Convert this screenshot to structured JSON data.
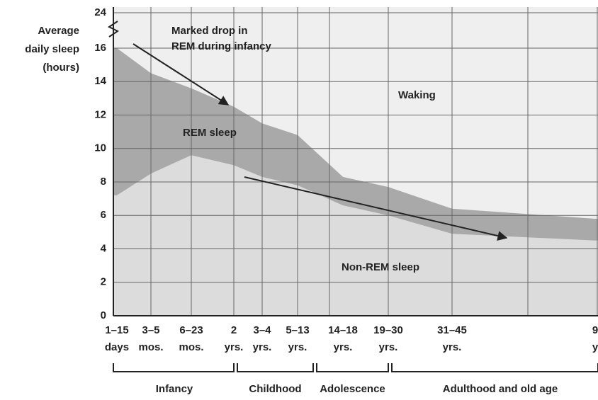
{
  "chart_data": {
    "type": "stacked_area",
    "y_label": [
      "Average",
      "daily sleep",
      "(hours)"
    ],
    "categories": [
      [
        "1–15",
        "days"
      ],
      [
        "3–5",
        "mos."
      ],
      [
        "6–23",
        "mos."
      ],
      [
        "2",
        "yrs."
      ],
      [
        "3–4",
        "yrs."
      ],
      [
        "5–13",
        "yrs."
      ],
      [
        "14–18",
        "yrs."
      ],
      [
        "19–30",
        "yrs."
      ],
      [
        "31–45",
        "yrs."
      ],
      [
        "9",
        "y"
      ]
    ],
    "series": [
      {
        "name": "Non-REM sleep",
        "color": "#dcdcdc",
        "values": [
          7.2,
          8.5,
          9.6,
          9,
          8.3,
          7.8,
          6.6,
          6,
          4.9,
          4.5
        ]
      },
      {
        "name": "REM sleep",
        "color": "#a9a9a9",
        "values": [
          8.8,
          6,
          4,
          3.5,
          3.2,
          3,
          1.7,
          1.7,
          1.5,
          1.3
        ]
      }
    ],
    "background_label": "Waking",
    "annotation": [
      "Marked drop in",
      "REM during infancy"
    ],
    "age_groups": [
      "Infancy",
      "Childhood",
      "Adolescence",
      "Adulthood and old age"
    ],
    "ylim": [
      0,
      24
    ],
    "yticks": [
      0,
      2,
      4,
      6,
      8,
      10,
      12,
      14,
      16,
      24
    ],
    "axis_break": 16,
    "grid": true
  }
}
